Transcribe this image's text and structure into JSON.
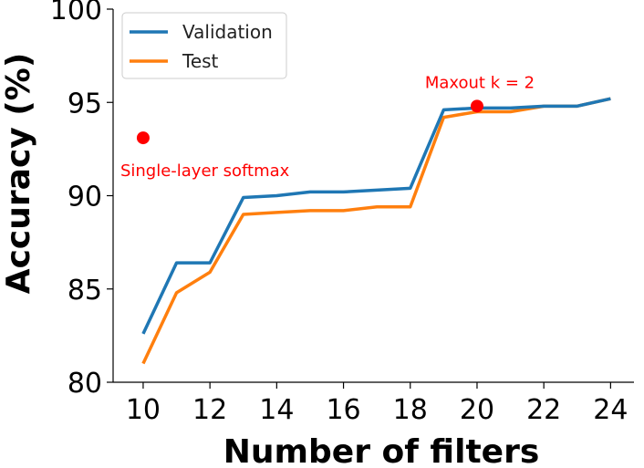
{
  "chart_data": {
    "type": "line",
    "title": "",
    "xlabel": "Number of filters",
    "ylabel": "Accuracy (%)",
    "xlim": [
      9.1,
      24.7
    ],
    "ylim": [
      80,
      100
    ],
    "xticks": [
      10,
      12,
      14,
      16,
      18,
      20,
      22,
      24
    ],
    "yticks": [
      80,
      85,
      90,
      95,
      100
    ],
    "grid": false,
    "legend_position": "top-left",
    "series": [
      {
        "name": "Validation",
        "color": "#1f77b4",
        "x": [
          10,
          11,
          12,
          13,
          14,
          15,
          16,
          17,
          18,
          19,
          20,
          21,
          22,
          23,
          24
        ],
        "y": [
          82.6,
          86.4,
          86.4,
          89.9,
          90.0,
          90.2,
          90.2,
          90.3,
          90.4,
          94.6,
          94.7,
          94.7,
          94.8,
          94.8,
          95.2
        ]
      },
      {
        "name": "Test",
        "color": "#ff7f0e",
        "x": [
          10,
          11,
          12,
          13,
          14,
          15,
          16,
          17,
          18,
          19,
          20,
          21,
          22,
          23,
          24
        ],
        "y": [
          81.0,
          84.8,
          85.9,
          89.0,
          89.1,
          89.2,
          89.2,
          89.4,
          89.4,
          94.2,
          94.5,
          94.5,
          94.8,
          94.8,
          95.2
        ]
      }
    ],
    "annotations": [
      {
        "text": "Single-layer softmax",
        "x": 10,
        "y": 93.1,
        "color": "#ff0000"
      },
      {
        "text": "Maxout k = 2",
        "x": 20,
        "y": 94.8,
        "color": "#ff0000"
      }
    ]
  }
}
